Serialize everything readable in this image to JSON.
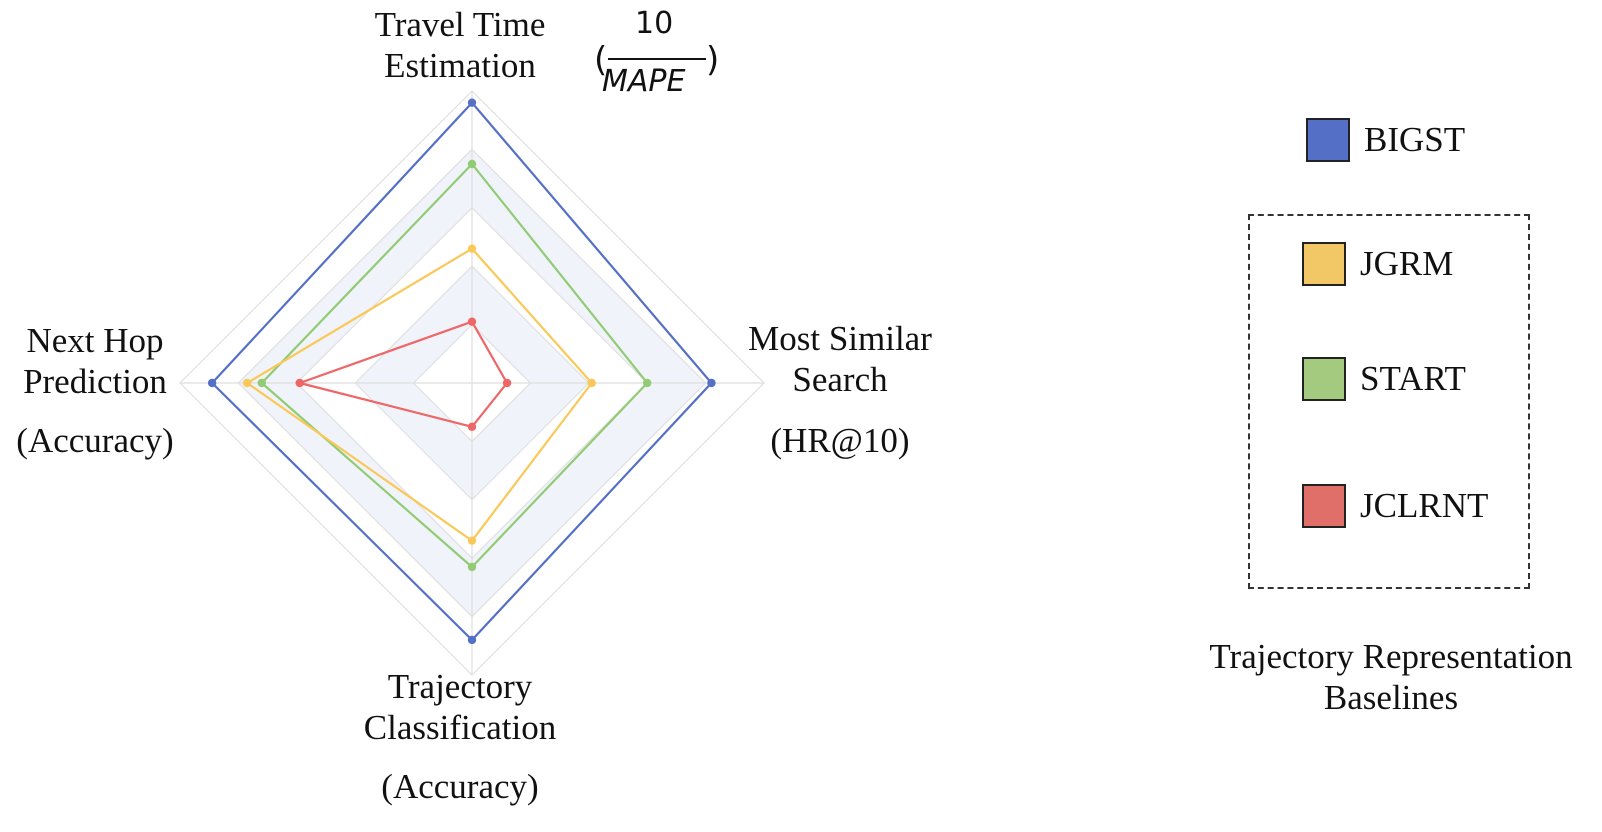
{
  "chart_data": {
    "type": "radar",
    "axes": [
      {
        "key": "top",
        "label_lines": [
          "Travel Time",
          "Estimation"
        ],
        "metric": {
          "paren_open": "(",
          "numerator": "10",
          "denominator": "MAPE",
          "paren_close": ")"
        }
      },
      {
        "key": "right",
        "label_lines": [
          "Most Similar",
          "Search"
        ],
        "metric": "(HR@10)"
      },
      {
        "key": "bottom",
        "label_lines": [
          "Trajectory",
          "Classification"
        ],
        "metric": "(Accuracy)"
      },
      {
        "key": "left",
        "label_lines": [
          "Next Hop",
          "Prediction"
        ],
        "metric": "(Accuracy)"
      }
    ],
    "scale": {
      "max": 1.0,
      "rings": 5
    },
    "series": [
      {
        "name": "BIGST",
        "color": "#5470c6",
        "values": [
          0.96,
          0.82,
          0.88,
          0.89
        ]
      },
      {
        "name": "START",
        "color": "#91cc75",
        "values": [
          0.75,
          0.6,
          0.63,
          0.72
        ]
      },
      {
        "name": "JGRM",
        "color": "#fac858",
        "values": [
          0.46,
          0.41,
          0.54,
          0.77
        ]
      },
      {
        "name": "JCLRNT",
        "color": "#ee6666",
        "values": [
          0.21,
          0.12,
          0.15,
          0.59
        ]
      }
    ],
    "legend": {
      "items": [
        {
          "name": "BIGST",
          "color": "#5470c6"
        },
        {
          "name": "JGRM",
          "color": "#f2c867"
        },
        {
          "name": "START",
          "color": "#a3ca7f"
        },
        {
          "name": "JCLRNT",
          "color": "#df6f68"
        }
      ],
      "group_caption_lines": [
        "Trajectory Representation",
        "Baselines"
      ],
      "placement": "right"
    }
  }
}
